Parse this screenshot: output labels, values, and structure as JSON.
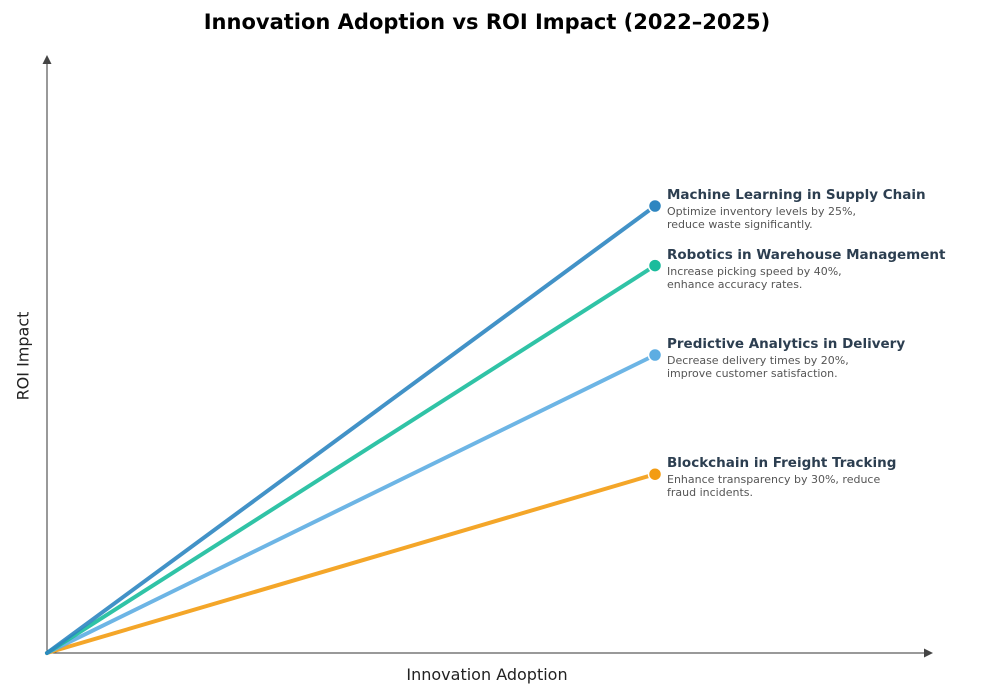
{
  "chart_data": {
    "type": "line",
    "title": "Innovation Adoption vs ROI Impact (2022–2025)",
    "xlabel": "Innovation Adoption",
    "ylabel": "ROI Impact",
    "xlim": [
      0,
      10
    ],
    "ylim": [
      0,
      10
    ],
    "grid": false,
    "ticks": false,
    "series": [
      {
        "name": "Machine Learning in Supply Chain",
        "description": "Optimize inventory levels by 25%,\nreduce waste significantly.",
        "color": "#2e86c1",
        "x": [
          0,
          7
        ],
        "y": [
          0,
          7.5
        ]
      },
      {
        "name": "Robotics in Warehouse Management",
        "description": "Increase picking speed by 40%,\nenhance accuracy rates.",
        "color": "#1abc9c",
        "x": [
          0,
          7
        ],
        "y": [
          0,
          6.5
        ]
      },
      {
        "name": "Predictive Analytics in Delivery",
        "description": "Decrease delivery times by 20%,\nimprove customer satisfaction.",
        "color": "#5dade2",
        "x": [
          0,
          7
        ],
        "y": [
          0,
          5
        ]
      },
      {
        "name": "Blockchain in Freight Tracking",
        "description": "Enhance transparency by 30%, reduce\nfraud incidents.",
        "color": "#f39c12",
        "x": [
          0,
          7
        ],
        "y": [
          0,
          3
        ]
      }
    ]
  }
}
